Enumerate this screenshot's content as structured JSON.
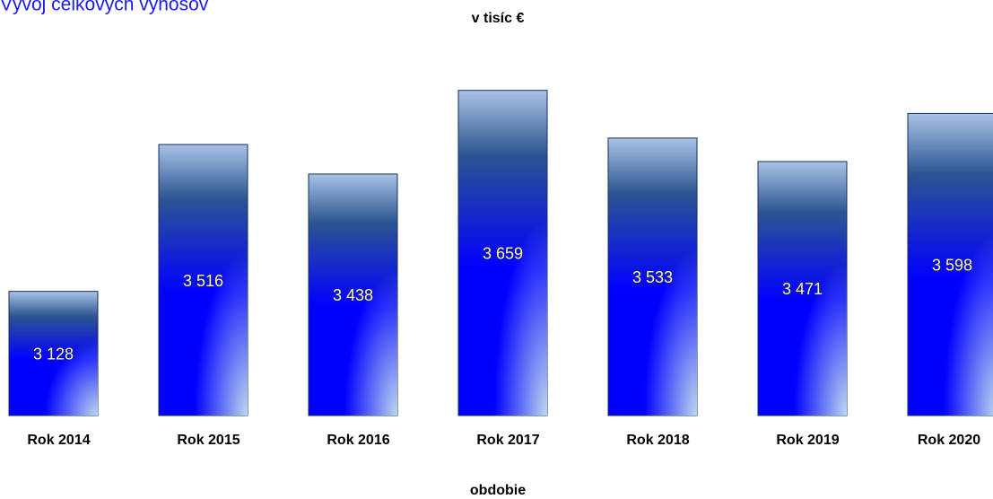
{
  "chart_data": {
    "type": "bar",
    "title": "Vývoj celkových výnosov",
    "subtitle": "v tisíc €",
    "x_label": "obdobie",
    "categories": [
      "Rok 2014",
      "Rok 2015",
      "Rok 2016",
      "Rok 2017",
      "Rok 2018",
      "Rok 2019",
      "Rok 2020"
    ],
    "values": [
      3128,
      3516,
      3438,
      3659,
      3533,
      3471,
      3598
    ],
    "value_labels": [
      "3 128",
      "3 516",
      "3 438",
      "3 659",
      "3 533",
      "3 471",
      "3 598"
    ],
    "color": "#0000ff",
    "label_color": "#ffff66",
    "ylim": [
      2800,
      3700
    ]
  }
}
